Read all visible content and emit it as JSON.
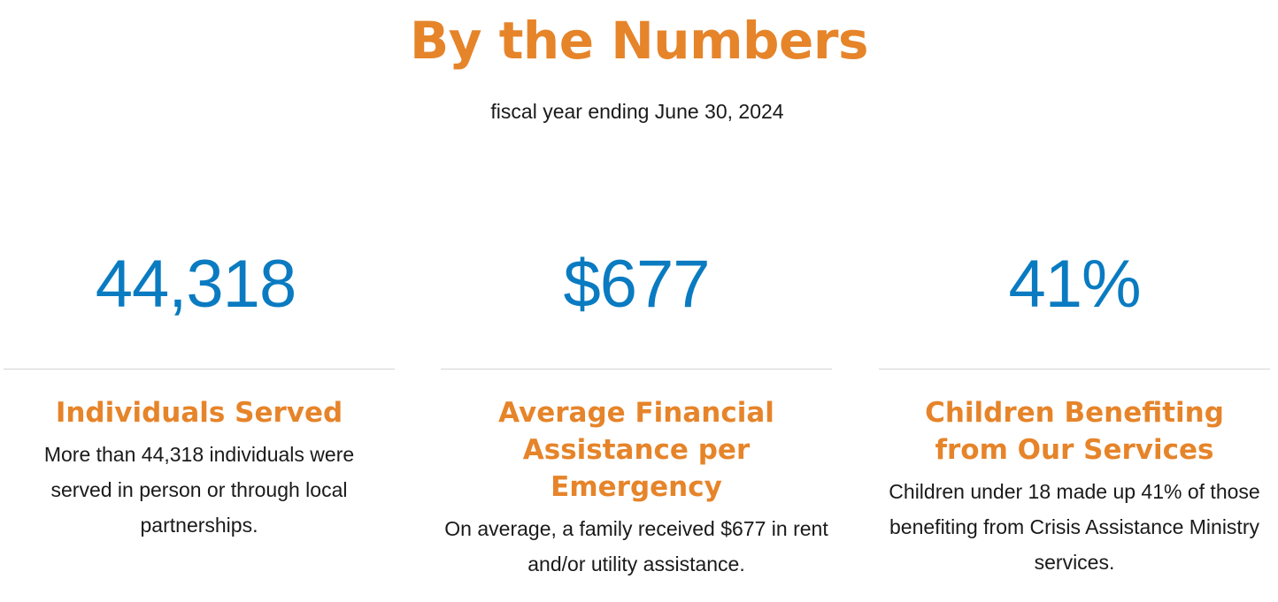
{
  "header": {
    "title": "By the Numbers",
    "subtitle": "fiscal year ending June 30, 2024"
  },
  "stats": [
    {
      "value": "44,318",
      "heading": "Individuals Served",
      "description": "More than 44,318 individuals were served in person or through local partnerships."
    },
    {
      "value": "$677",
      "heading": "Average Financial Assistance per Emergency",
      "description": "On average, a family received $677 in rent and/or utility assistance."
    },
    {
      "value": "41%",
      "heading": "Children Benefiting from Our Services",
      "description": "Children under 18 made up 41% of those benefiting from Crisis Assistance Ministry services."
    }
  ],
  "colors": {
    "accent_orange": "#e6842a",
    "stat_blue": "#0a7bc1",
    "body_text": "#1a1a1a",
    "divider": "#d4d4d4"
  }
}
